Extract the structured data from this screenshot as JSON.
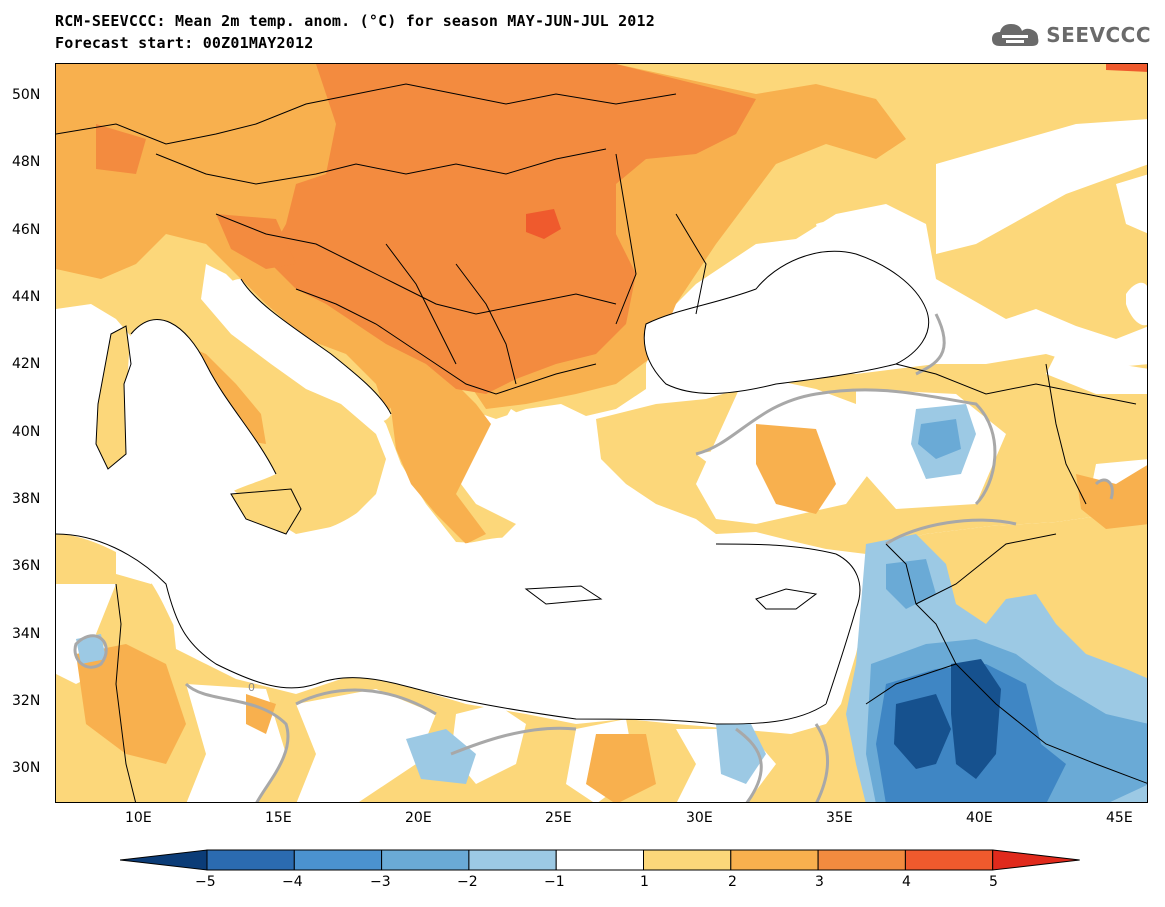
{
  "header": {
    "title_line1": "RCM-SEEVCCC: Mean 2m temp. anom. (°C) for season MAY-JUN-JUL 2012",
    "title_line2": "Forecast start: 00Z01MAY2012"
  },
  "logo": {
    "text": "SEEVCCC",
    "icon": "cloud-icon",
    "color": "#6a6a6a"
  },
  "map": {
    "lat_labels": [
      "50N",
      "48N",
      "46N",
      "44N",
      "42N",
      "40N",
      "38N",
      "36N",
      "34N",
      "32N",
      "30N"
    ],
    "lon_labels": [
      "10E",
      "15E",
      "20E",
      "25E",
      "30E",
      "35E",
      "40E",
      "45E"
    ],
    "contour_label": "0",
    "colors": {
      "sea": "#ffffff",
      "anom_0_1": "#ffffff",
      "anom_1_2": "#fcd77a",
      "anom_2_3": "#f8b04e",
      "anom_3_4": "#f38b3f",
      "anom_4_5": "#ef5a2d",
      "anom_m1_m2": "#9cc9e4",
      "anom_m2_m3": "#6aaad6",
      "anom_m3_m4": "#3f86c4",
      "anom_m4_m5": "#16518e",
      "zero_contour": "#a8a8a8",
      "borders": "#000000"
    }
  },
  "colorbar": {
    "labels": [
      "−5",
      "−4",
      "−3",
      "−2",
      "−1",
      "1",
      "2",
      "3",
      "4",
      "5"
    ],
    "colors": [
      "#0b3c77",
      "#2b6bb0",
      "#4b92cf",
      "#6aaad6",
      "#9cc9e4",
      "#ffffff",
      "#fcd77a",
      "#f8b04e",
      "#f38b3f",
      "#ef5a2d",
      "#e02a1c"
    ]
  }
}
